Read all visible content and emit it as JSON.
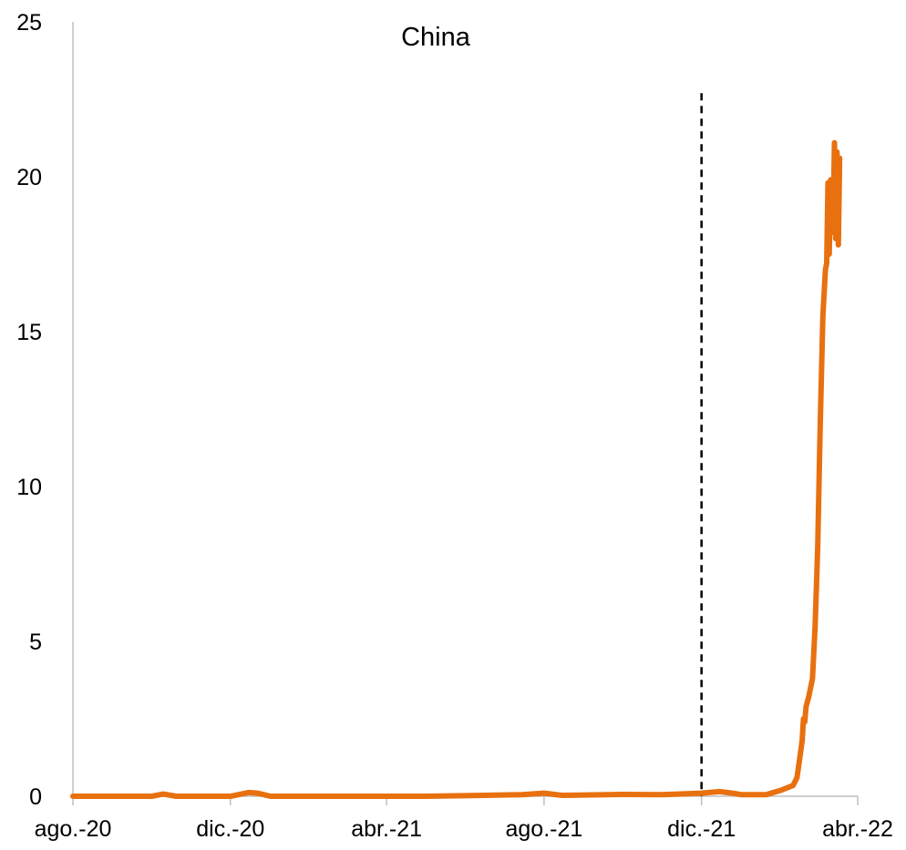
{
  "chart_data": {
    "type": "line",
    "title": "China",
    "xlabel": "",
    "ylabel": "",
    "ylim": [
      0,
      25
    ],
    "xlim": [
      "2020-08-01",
      "2022-04-01"
    ],
    "yticks": [
      0,
      5,
      10,
      15,
      20,
      25
    ],
    "xticks": [
      {
        "date": "2020-08-01",
        "label": "ago.-20"
      },
      {
        "date": "2020-12-01",
        "label": "dic.-20"
      },
      {
        "date": "2021-04-01",
        "label": "abr.-21"
      },
      {
        "date": "2021-08-01",
        "label": "ago.-21"
      },
      {
        "date": "2021-12-01",
        "label": "dic.-21"
      },
      {
        "date": "2022-04-01",
        "label": "abr.-22"
      }
    ],
    "grid": false,
    "legend": "none",
    "reference_line": {
      "date": "2021-12-01",
      "style": "dashed",
      "color": "#000000",
      "y_top": 22.7
    },
    "series": [
      {
        "color": "#E8700F",
        "points": [
          [
            "2020-08-01",
            0.0
          ],
          [
            "2020-10-01",
            0.0
          ],
          [
            "2020-10-10",
            0.07
          ],
          [
            "2020-10-20",
            0.0
          ],
          [
            "2020-12-01",
            0.0
          ],
          [
            "2020-12-15",
            0.12
          ],
          [
            "2020-12-22",
            0.1
          ],
          [
            "2021-01-01",
            0.0
          ],
          [
            "2021-05-01",
            0.0
          ],
          [
            "2021-06-15",
            0.03
          ],
          [
            "2021-07-15",
            0.05
          ],
          [
            "2021-08-01",
            0.1
          ],
          [
            "2021-08-15",
            0.03
          ],
          [
            "2021-10-01",
            0.06
          ],
          [
            "2021-11-01",
            0.05
          ],
          [
            "2021-12-01",
            0.1
          ],
          [
            "2021-12-15",
            0.15
          ],
          [
            "2021-12-25",
            0.1
          ],
          [
            "2022-01-01",
            0.05
          ],
          [
            "2022-01-20",
            0.05
          ],
          [
            "2022-02-01",
            0.2
          ],
          [
            "2022-02-10",
            0.35
          ],
          [
            "2022-02-13",
            0.6
          ],
          [
            "2022-02-15",
            1.2
          ],
          [
            "2022-02-17",
            1.8
          ],
          [
            "2022-02-18",
            2.5
          ],
          [
            "2022-02-19",
            2.4
          ],
          [
            "2022-02-20",
            2.9
          ],
          [
            "2022-02-22",
            3.2
          ],
          [
            "2022-02-24",
            3.6
          ],
          [
            "2022-02-25",
            3.8
          ],
          [
            "2022-02-27",
            5.5
          ],
          [
            "2022-03-01",
            8.0
          ],
          [
            "2022-03-03",
            12.0
          ],
          [
            "2022-03-05",
            15.5
          ],
          [
            "2022-03-07",
            17.0
          ],
          [
            "2022-03-08",
            17.2
          ],
          [
            "2022-03-09",
            19.8
          ],
          [
            "2022-03-10",
            17.5
          ],
          [
            "2022-03-11",
            19.9
          ],
          [
            "2022-03-12",
            18.2
          ],
          [
            "2022-03-13",
            18.5
          ],
          [
            "2022-03-14",
            21.1
          ],
          [
            "2022-03-15",
            18.0
          ],
          [
            "2022-03-16",
            20.8
          ],
          [
            "2022-03-17",
            17.8
          ],
          [
            "2022-03-18",
            20.6
          ]
        ]
      }
    ]
  }
}
